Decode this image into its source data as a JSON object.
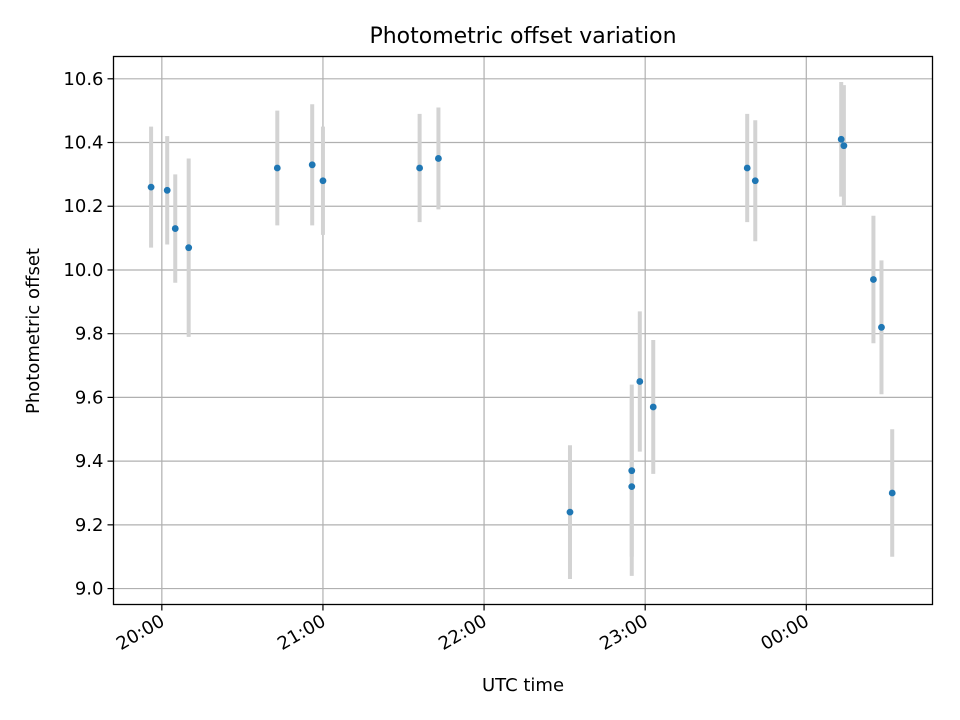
{
  "chart_data": {
    "type": "scatter",
    "title": "Photometric offset variation",
    "xlabel": "UTC time",
    "ylabel": "Photometric offset",
    "x_ticks": [
      "20:00",
      "21:00",
      "22:00",
      "23:00",
      "00:00"
    ],
    "y_ticks": [
      "9.0",
      "9.2",
      "9.4",
      "9.6",
      "9.8",
      "10.0",
      "10.2",
      "10.4",
      "10.6"
    ],
    "xlim": [
      "19:42",
      "00:47"
    ],
    "ylim": [
      8.95,
      10.67
    ],
    "grid": true,
    "colors": {
      "marker": "#1f77b4",
      "errorbar": "#d3d3d3",
      "grid": "#b0b0b0"
    },
    "points": [
      {
        "time": "19:56",
        "value": 10.26,
        "yerr": 0.19
      },
      {
        "time": "20:02",
        "value": 10.25,
        "yerr": 0.17
      },
      {
        "time": "20:05",
        "value": 10.13,
        "yerr": 0.17
      },
      {
        "time": "20:10",
        "value": 10.07,
        "yerr": 0.28
      },
      {
        "time": "20:43",
        "value": 10.32,
        "yerr": 0.18
      },
      {
        "time": "20:56",
        "value": 10.33,
        "yerr": 0.19
      },
      {
        "time": "21:00",
        "value": 10.28,
        "yerr": 0.17
      },
      {
        "time": "21:36",
        "value": 10.32,
        "yerr": 0.17
      },
      {
        "time": "21:43",
        "value": 10.35,
        "yerr": 0.16
      },
      {
        "time": "22:32",
        "value": 9.24,
        "yerr": 0.21
      },
      {
        "time": "22:55",
        "value": 9.37,
        "yerr": 0.27
      },
      {
        "time": "22:55",
        "value": 9.32,
        "yerr": 0.28
      },
      {
        "time": "22:58",
        "value": 9.65,
        "yerr": 0.22
      },
      {
        "time": "23:03",
        "value": 9.57,
        "yerr": 0.21
      },
      {
        "time": "23:38",
        "value": 10.32,
        "yerr": 0.17
      },
      {
        "time": "23:41",
        "value": 10.28,
        "yerr": 0.19
      },
      {
        "time": "00:13",
        "value": 10.41,
        "yerr": 0.18
      },
      {
        "time": "00:14",
        "value": 10.39,
        "yerr": 0.19
      },
      {
        "time": "00:25",
        "value": 9.97,
        "yerr": 0.2
      },
      {
        "time": "00:28",
        "value": 9.82,
        "yerr": 0.21
      },
      {
        "time": "00:32",
        "value": 9.3,
        "yerr": 0.2
      }
    ]
  }
}
